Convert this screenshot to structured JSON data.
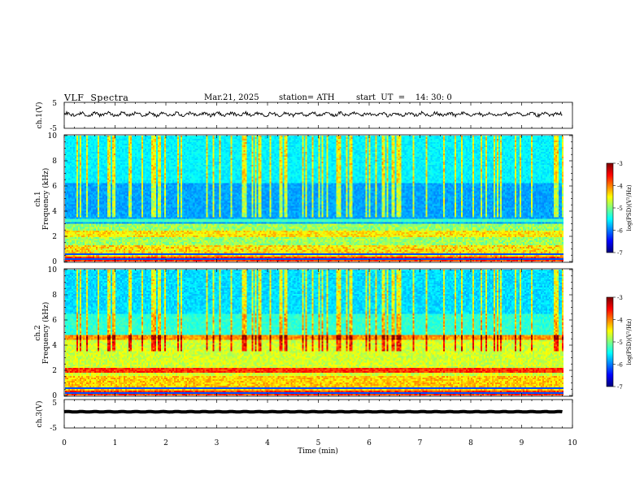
{
  "header": {
    "title": "VLF  Spectra",
    "date": "Mar.21, 2025",
    "station": "station= ATH",
    "start": "start  UT  =    14: 30: 0"
  },
  "chart_data": [
    {
      "type": "line",
      "name": "ch1-waveform",
      "ylabel": "ch.1(V)",
      "ylim": [
        -5,
        5
      ],
      "yticks": [
        "5",
        "-5"
      ],
      "x_range_min": [
        0,
        9.8
      ],
      "baseline_v": 0.4,
      "amplitude_v": 1.2
    },
    {
      "type": "heatmap",
      "name": "ch1-spectrogram",
      "ylabel_top": "ch.1",
      "ylabel": "Frequency  (kHz)",
      "ylim": [
        0,
        10
      ],
      "yticks": [
        "0",
        "2",
        "4",
        "6",
        "8",
        "10"
      ],
      "x_range_min": [
        0,
        9.8
      ],
      "colorbar": {
        "label": "log(PSD)(V²/Hz)",
        "range": [
          -7,
          -3
        ],
        "ticks": [
          "-3",
          "-4",
          "-5",
          "-6",
          "-7"
        ]
      }
    },
    {
      "type": "heatmap",
      "name": "ch2-spectrogram",
      "ylabel_top": "ch.2",
      "ylabel": "Frequency  (kHz)",
      "ylim": [
        0,
        10
      ],
      "yticks": [
        "0",
        "2",
        "4",
        "6",
        "8",
        "10"
      ],
      "x_range_min": [
        0,
        9.8
      ],
      "colorbar": {
        "label": "log(PSD)(V²/Hz)",
        "range": [
          -7,
          -3
        ],
        "ticks": [
          "-3",
          "-4",
          "-5",
          "-6",
          "-7"
        ]
      }
    },
    {
      "type": "line",
      "name": "ch3-waveform",
      "ylabel": "ch.3(V)",
      "ylim": [
        -5,
        5
      ],
      "yticks": [
        "5",
        "-5"
      ],
      "x_range_min": [
        0,
        9.8
      ],
      "baseline_v": 0.7,
      "amplitude_v": 0.2
    }
  ],
  "xaxis": {
    "label": "Time  (min)",
    "ticks": [
      "0",
      "1",
      "2",
      "3",
      "4",
      "5",
      "6",
      "7",
      "8",
      "9",
      "10"
    ],
    "range": [
      0,
      10
    ]
  }
}
